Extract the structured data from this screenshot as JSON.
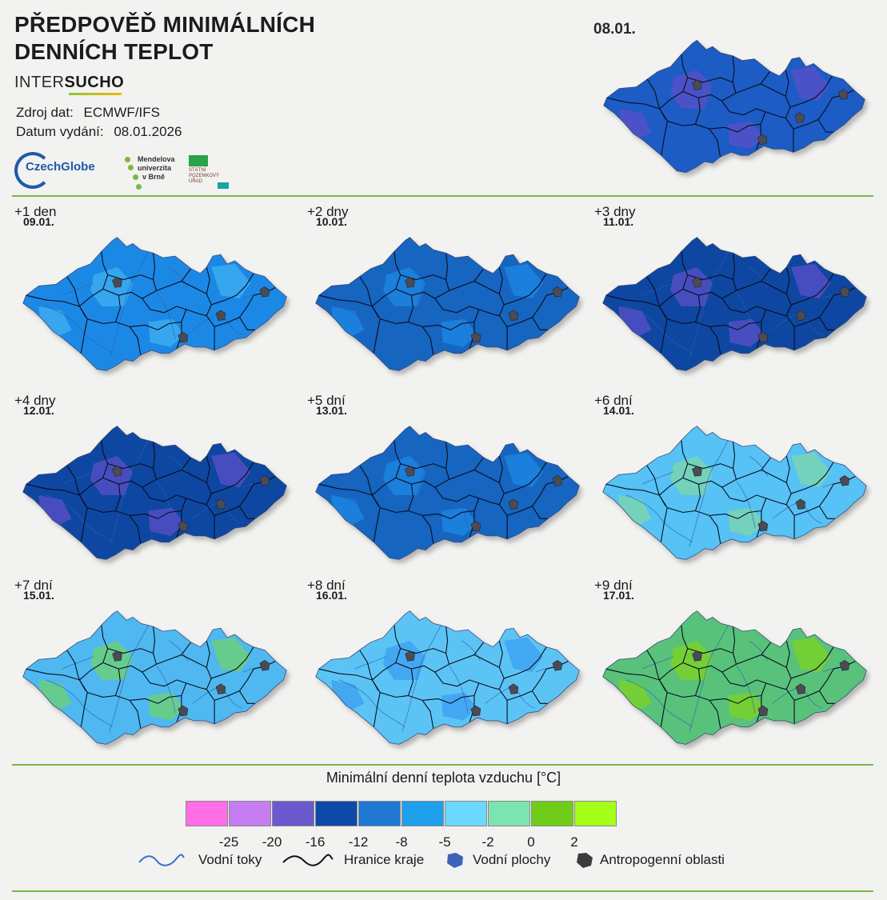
{
  "header": {
    "title_line1": "PŘEDPOVĚĎ MINIMÁLNÍCH",
    "title_line2": "DENNÍCH TEPLOT",
    "brand_part1": "INTER",
    "brand_part2": "SUCHO",
    "source_label": "Zdroj dat:",
    "source_value": "ECMWF/IFS",
    "issue_label": "Datum vydání:",
    "issue_value": "08.01.2026"
  },
  "logos": {
    "czechglobe": "CzechGlobe",
    "mendel_line1": "Mendelova",
    "mendel_line2": "univerzita",
    "mendel_line3": "v Brně",
    "spu_line1": "STÁTNÍ",
    "spu_line2": "POZEMKOVÝ",
    "spu_line3": "ÚŘAD"
  },
  "current": {
    "date": "08.01.",
    "fill": "#1a5cc4",
    "patch": "#5b4fc9"
  },
  "panels": [
    {
      "label": "+1 den",
      "date": "09.01.",
      "fill": "#1e88e5",
      "patch": "#3fb0f0"
    },
    {
      "label": "+2 dny",
      "date": "10.01.",
      "fill": "#1565c0",
      "patch": "#1e88e5"
    },
    {
      "label": "+3 dny",
      "date": "11.01.",
      "fill": "#0d47a1",
      "patch": "#5b4fc9"
    },
    {
      "label": "+4 dny",
      "date": "12.01.",
      "fill": "#0d47a1",
      "patch": "#5b4fc9"
    },
    {
      "label": "+5 dní",
      "date": "13.01.",
      "fill": "#1565c0",
      "patch": "#1e88e5"
    },
    {
      "label": "+6 dní",
      "date": "14.01.",
      "fill": "#56c2f5",
      "patch": "#7fd6a8"
    },
    {
      "label": "+7 dní",
      "date": "15.01.",
      "fill": "#4fb8f0",
      "patch": "#6ed36e"
    },
    {
      "label": "+8 dní",
      "date": "16.01.",
      "fill": "#5bc4f5",
      "patch": "#3b9ff0"
    },
    {
      "label": "+9 dní",
      "date": "17.01.",
      "fill": "#58c27a",
      "patch": "#7ed321"
    }
  ],
  "legend": {
    "title": "Minimální denní teplota vzduchu [°C]",
    "colors": [
      "#ff6ee6",
      "#c77df2",
      "#6a5acd",
      "#0d4aa8",
      "#1e78d2",
      "#1ea0ec",
      "#6ad8ff",
      "#7be4b0",
      "#6fcc18",
      "#a6ff1a"
    ],
    "ticks": [
      "-25",
      "-20",
      "-16",
      "-12",
      "-8",
      "-5",
      "-2",
      "0",
      "2"
    ],
    "items": [
      {
        "icon": "river-icon",
        "label": "Vodní toky"
      },
      {
        "icon": "region-border-icon",
        "label": "Hranice kraje"
      },
      {
        "icon": "water-body-icon",
        "label": "Vodní plochy"
      },
      {
        "icon": "urban-area-icon",
        "label": "Antropogenní oblasti"
      }
    ]
  }
}
